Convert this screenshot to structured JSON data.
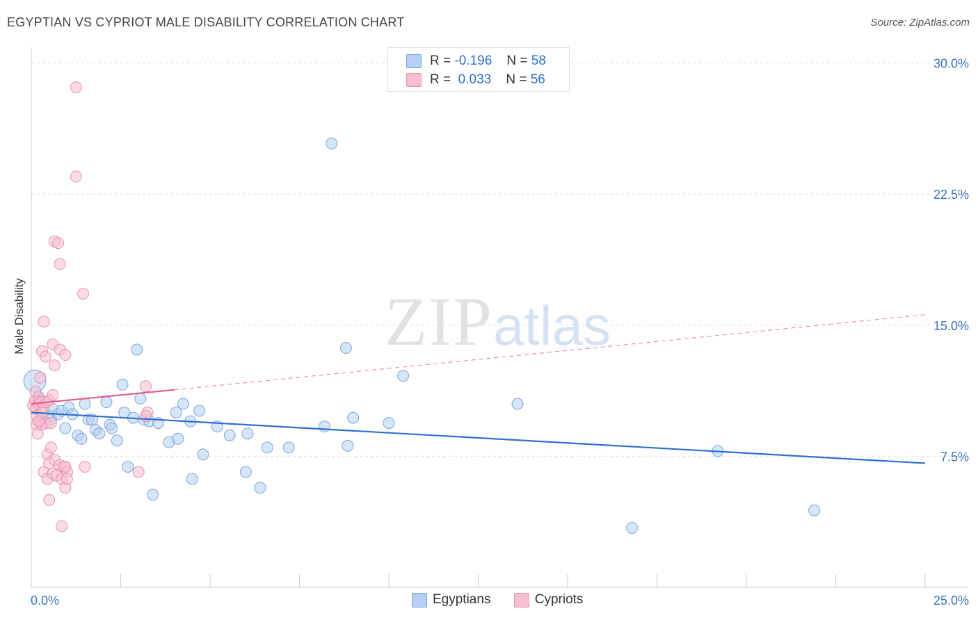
{
  "title": "EGYPTIAN VS CYPRIOT MALE DISABILITY CORRELATION CHART",
  "source": "Source: ZipAtlas.com",
  "watermark": {
    "part1": "ZIP",
    "part2": "atlas"
  },
  "colors": {
    "blue_fill": "#b5d0f2",
    "blue_stroke": "#7aa6e0",
    "blue_line": "#2d6fcc",
    "pink_fill": "#f7c0d2",
    "pink_stroke": "#e891b0",
    "pink_line": "#e05a88",
    "grid": "#dddddd",
    "axis_label": "#3a72c4"
  },
  "legend": {
    "rows": [
      {
        "r_label": "R =",
        "r_value": "-0.196",
        "n_label": "N =",
        "n_value": "58",
        "color": "#b5d0f2",
        "border": "#7aa6e0"
      },
      {
        "r_label": "R =",
        "r_value": "0.033",
        "n_label": "N =",
        "n_value": "56",
        "color": "#f7c0d2",
        "border": "#e891b0"
      }
    ]
  },
  "bottom_legend": [
    {
      "label": "Egyptians",
      "color": "#b5d0f2",
      "border": "#7aa6e0"
    },
    {
      "label": "Cypriots",
      "color": "#f7c0d2",
      "border": "#e891b0"
    }
  ],
  "chart_data": {
    "type": "scatter",
    "title": "EGYPTIAN VS CYPRIOT MALE DISABILITY CORRELATION CHART",
    "xlabel": "",
    "ylabel": "Male Disability",
    "xlim": [
      0,
      25
    ],
    "ylim": [
      0,
      30.5
    ],
    "x_tick_labels": [
      {
        "value": 0,
        "label": "0.0%"
      },
      {
        "value": 25,
        "label": "25.0%"
      }
    ],
    "y_ticks": [
      {
        "value": 7.5,
        "label": "7.5%"
      },
      {
        "value": 15,
        "label": "15.0%"
      },
      {
        "value": 22.5,
        "label": "22.5%"
      },
      {
        "value": 30,
        "label": "30.0%"
      }
    ],
    "x_minor_ticks": [
      0,
      2.5,
      5,
      7.5,
      10,
      12.5,
      15,
      17.5,
      20,
      22.5,
      25
    ],
    "grid": "horizontal dashed",
    "series": [
      {
        "name": "Egyptians",
        "r": -0.196,
        "n": 58,
        "trend": {
          "x": [
            0,
            25
          ],
          "y": [
            10.0,
            7.1
          ],
          "dashed_extension": false
        },
        "points": [
          {
            "x": 0.1,
            "y": 11.8,
            "s": 2
          },
          {
            "x": 0.3,
            "y": 10.6
          },
          {
            "x": 0.5,
            "y": 9.8
          },
          {
            "x": 0.55,
            "y": 9.6
          },
          {
            "x": 0.6,
            "y": 10.2
          },
          {
            "x": 0.75,
            "y": 9.9
          },
          {
            "x": 0.85,
            "y": 10.1
          },
          {
            "x": 0.95,
            "y": 9.1
          },
          {
            "x": 1.05,
            "y": 10.3
          },
          {
            "x": 1.15,
            "y": 9.9
          },
          {
            "x": 1.3,
            "y": 8.7
          },
          {
            "x": 1.4,
            "y": 8.5
          },
          {
            "x": 1.5,
            "y": 10.5
          },
          {
            "x": 1.6,
            "y": 9.6
          },
          {
            "x": 1.7,
            "y": 9.6
          },
          {
            "x": 1.8,
            "y": 9.0
          },
          {
            "x": 1.9,
            "y": 8.8
          },
          {
            "x": 2.1,
            "y": 10.6
          },
          {
            "x": 2.2,
            "y": 9.3
          },
          {
            "x": 2.25,
            "y": 9.1
          },
          {
            "x": 2.4,
            "y": 8.4
          },
          {
            "x": 2.55,
            "y": 11.6
          },
          {
            "x": 2.6,
            "y": 10.0
          },
          {
            "x": 2.7,
            "y": 6.9
          },
          {
            "x": 2.85,
            "y": 9.7
          },
          {
            "x": 2.95,
            "y": 13.6
          },
          {
            "x": 3.05,
            "y": 10.8
          },
          {
            "x": 3.15,
            "y": 9.6
          },
          {
            "x": 3.3,
            "y": 9.5
          },
          {
            "x": 3.4,
            "y": 5.3
          },
          {
            "x": 3.55,
            "y": 9.4
          },
          {
            "x": 3.85,
            "y": 8.3
          },
          {
            "x": 4.1,
            "y": 8.5
          },
          {
            "x": 4.05,
            "y": 10.0
          },
          {
            "x": 4.25,
            "y": 10.5
          },
          {
            "x": 4.45,
            "y": 9.5
          },
          {
            "x": 4.5,
            "y": 6.2
          },
          {
            "x": 4.7,
            "y": 10.1
          },
          {
            "x": 4.8,
            "y": 7.6
          },
          {
            "x": 5.2,
            "y": 9.2
          },
          {
            "x": 5.55,
            "y": 8.7
          },
          {
            "x": 6.0,
            "y": 6.6
          },
          {
            "x": 6.05,
            "y": 8.8
          },
          {
            "x": 6.4,
            "y": 5.7
          },
          {
            "x": 6.6,
            "y": 8.0
          },
          {
            "x": 7.2,
            "y": 8.0
          },
          {
            "x": 8.2,
            "y": 9.2
          },
          {
            "x": 8.4,
            "y": 25.4
          },
          {
            "x": 8.8,
            "y": 13.7
          },
          {
            "x": 8.85,
            "y": 8.1
          },
          {
            "x": 9.0,
            "y": 9.7
          },
          {
            "x": 10.0,
            "y": 9.4
          },
          {
            "x": 10.4,
            "y": 12.1
          },
          {
            "x": 13.6,
            "y": 10.5
          },
          {
            "x": 16.8,
            "y": 3.4
          },
          {
            "x": 19.2,
            "y": 7.8
          },
          {
            "x": 21.9,
            "y": 4.4
          },
          {
            "x": 0.2,
            "y": 10.9
          }
        ]
      },
      {
        "name": "Cypriots",
        "r": 0.033,
        "n": 56,
        "trend": {
          "x": [
            0,
            4.0
          ],
          "y": [
            10.5,
            11.3
          ],
          "dashed_x": [
            4.0,
            25
          ],
          "dashed_y": [
            11.3,
            15.6
          ]
        },
        "points": [
          {
            "x": 0.05,
            "y": 10.4
          },
          {
            "x": 0.1,
            "y": 10.7
          },
          {
            "x": 0.12,
            "y": 10.2
          },
          {
            "x": 0.15,
            "y": 9.8
          },
          {
            "x": 0.15,
            "y": 9.3
          },
          {
            "x": 0.18,
            "y": 8.8
          },
          {
            "x": 0.2,
            "y": 10.5
          },
          {
            "x": 0.22,
            "y": 10.8
          },
          {
            "x": 0.25,
            "y": 12.0
          },
          {
            "x": 0.25,
            "y": 9.5
          },
          {
            "x": 0.28,
            "y": 10.6
          },
          {
            "x": 0.3,
            "y": 13.5
          },
          {
            "x": 0.3,
            "y": 9.3
          },
          {
            "x": 0.35,
            "y": 15.2
          },
          {
            "x": 0.35,
            "y": 10.3
          },
          {
            "x": 0.35,
            "y": 6.6
          },
          {
            "x": 0.4,
            "y": 13.2
          },
          {
            "x": 0.4,
            "y": 9.4
          },
          {
            "x": 0.42,
            "y": 10.6
          },
          {
            "x": 0.45,
            "y": 7.6
          },
          {
            "x": 0.45,
            "y": 6.2
          },
          {
            "x": 0.5,
            "y": 10.7
          },
          {
            "x": 0.5,
            "y": 7.1
          },
          {
            "x": 0.5,
            "y": 5.0
          },
          {
            "x": 0.55,
            "y": 8.0
          },
          {
            "x": 0.6,
            "y": 6.5
          },
          {
            "x": 0.6,
            "y": 13.9
          },
          {
            "x": 0.6,
            "y": 11.0
          },
          {
            "x": 0.65,
            "y": 12.7
          },
          {
            "x": 0.65,
            "y": 7.3
          },
          {
            "x": 0.65,
            "y": 19.8
          },
          {
            "x": 0.7,
            "y": 6.4
          },
          {
            "x": 0.75,
            "y": 19.7
          },
          {
            "x": 0.8,
            "y": 13.6
          },
          {
            "x": 0.8,
            "y": 18.5
          },
          {
            "x": 0.8,
            "y": 7.0
          },
          {
            "x": 0.85,
            "y": 3.5
          },
          {
            "x": 0.85,
            "y": 6.2
          },
          {
            "x": 0.9,
            "y": 6.9
          },
          {
            "x": 0.95,
            "y": 5.7
          },
          {
            "x": 1.0,
            "y": 6.6
          },
          {
            "x": 0.95,
            "y": 13.3
          },
          {
            "x": 1.0,
            "y": 6.2
          },
          {
            "x": 0.95,
            "y": 6.9
          },
          {
            "x": 1.25,
            "y": 28.6
          },
          {
            "x": 1.25,
            "y": 23.5
          },
          {
            "x": 1.45,
            "y": 16.8
          },
          {
            "x": 1.5,
            "y": 6.9
          },
          {
            "x": 3.0,
            "y": 6.6
          },
          {
            "x": 3.2,
            "y": 11.5
          },
          {
            "x": 3.25,
            "y": 10.0
          },
          {
            "x": 3.2,
            "y": 9.8
          },
          {
            "x": 0.3,
            "y": 10.0
          },
          {
            "x": 0.12,
            "y": 11.2
          },
          {
            "x": 0.2,
            "y": 9.5
          },
          {
            "x": 0.55,
            "y": 9.4
          }
        ]
      }
    ]
  }
}
